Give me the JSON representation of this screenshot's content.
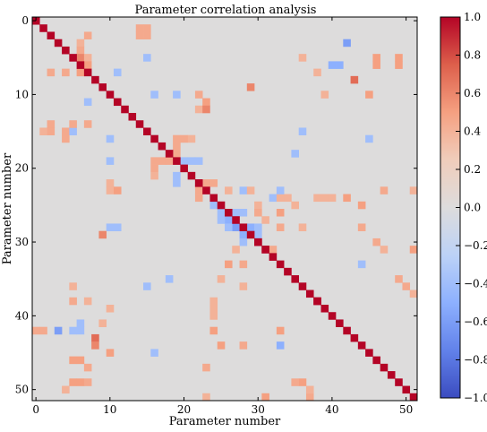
{
  "chart_data": {
    "type": "heatmap",
    "title": "Parameter correlation analysis",
    "xlabel": "Parameter number",
    "ylabel": "Parameter number",
    "n": 52,
    "x_ticks": [
      0,
      10,
      20,
      30,
      40,
      50
    ],
    "y_ticks": [
      0,
      10,
      20,
      30,
      40,
      50
    ],
    "colorbar": {
      "min": -1.0,
      "max": 1.0,
      "ticks": [
        1.0,
        0.8,
        0.6,
        0.4,
        0.2,
        0.0,
        -0.2,
        -0.4,
        -0.6,
        -0.8,
        -1.0
      ],
      "tick_labels": [
        "1.0",
        "0.8",
        "0.6",
        "0.4",
        "0.2",
        "0.0",
        "−0.2",
        "−0.4",
        "−0.6",
        "−0.8",
        "−1.0"
      ],
      "colormap": "coolwarm"
    },
    "diagonal_value": 1.0,
    "background_value": 0.0,
    "cells": [
      [
        1,
        15,
        0.4
      ],
      [
        2,
        7,
        0.45
      ],
      [
        4,
        7,
        0.45
      ],
      [
        4,
        15,
        0.45
      ],
      [
        4,
        16,
        0.45
      ],
      [
        5,
        15,
        -0.4
      ],
      [
        6,
        3,
        0.4
      ],
      [
        6,
        4,
        0.45
      ],
      [
        6,
        5,
        0.6
      ],
      [
        6,
        7,
        0.5
      ],
      [
        7,
        2,
        0.45
      ],
      [
        7,
        5,
        0.4
      ],
      [
        7,
        6,
        0.5
      ],
      [
        7,
        11,
        -0.4
      ],
      [
        10,
        16,
        -0.4
      ],
      [
        10,
        19,
        -0.4
      ],
      [
        10,
        22,
        0.4
      ],
      [
        10,
        23,
        0.4
      ],
      [
        10,
        28,
        -0.4
      ],
      [
        11,
        7,
        -0.4
      ],
      [
        11,
        23,
        0.5
      ],
      [
        11,
        28,
        -0.4
      ],
      [
        14,
        2,
        0.45
      ],
      [
        15,
        2,
        0.45
      ],
      [
        15,
        5,
        -0.4
      ],
      [
        16,
        10,
        -0.4
      ],
      [
        19,
        10,
        -0.4
      ],
      [
        22,
        10,
        0.45
      ],
      [
        23,
        11,
        0.5
      ],
      [
        16,
        19,
        0.45
      ],
      [
        16,
        20,
        0.45
      ],
      [
        19,
        16,
        0.45
      ],
      [
        19,
        17,
        0.45
      ],
      [
        19,
        18,
        0.45
      ],
      [
        21,
        16,
        0.4
      ],
      [
        17,
        19,
        0.45
      ],
      [
        18,
        19,
        0.45
      ],
      [
        19,
        21,
        -0.4
      ],
      [
        19,
        22,
        -0.4
      ],
      [
        20,
        16,
        0.45
      ],
      [
        20,
        19,
        -0.4
      ],
      [
        16,
        21,
        0.4
      ],
      [
        21,
        19,
        -0.4
      ],
      [
        22,
        19,
        -0.4
      ],
      [
        15,
        36,
        -0.4
      ],
      [
        18,
        35,
        -0.4
      ],
      [
        3,
        42,
        -0.6
      ],
      [
        6,
        41,
        -0.4
      ],
      [
        8,
        43,
        0.7
      ],
      [
        5,
        46,
        0.5
      ],
      [
        6,
        46,
        0.5
      ],
      [
        5,
        49,
        0.5
      ],
      [
        6,
        49,
        0.5
      ],
      [
        10,
        45,
        0.5
      ],
      [
        7,
        38,
        0.4
      ],
      [
        10,
        39,
        0.4
      ],
      [
        5,
        36,
        0.4
      ],
      [
        9,
        29,
        0.6
      ],
      [
        11,
        28,
        -0.4
      ],
      [
        16,
        45,
        -0.4
      ],
      [
        19,
        10,
        -0.4
      ],
      [
        22,
        10,
        0.4
      ],
      [
        23,
        11,
        0.4
      ],
      [
        22,
        22,
        1.0
      ],
      [
        22,
        23,
        0.45
      ],
      [
        23,
        22,
        0.45
      ],
      [
        24,
        22,
        0.45
      ],
      [
        22,
        24,
        0.45
      ],
      [
        23,
        47,
        0.45
      ],
      [
        23,
        51,
        0.4
      ],
      [
        24,
        38,
        0.4
      ],
      [
        24,
        39,
        0.4
      ],
      [
        24,
        40,
        0.4
      ],
      [
        25,
        44,
        0.5
      ],
      [
        24,
        42,
        0.5
      ],
      [
        22,
        12,
        0.4
      ],
      [
        23,
        12,
        0.6
      ],
      [
        28,
        23,
        -0.4
      ],
      [
        29,
        23,
        0.4
      ],
      [
        27,
        28,
        -0.6
      ],
      [
        28,
        29,
        -0.5
      ],
      [
        27,
        26,
        -0.4
      ],
      [
        28,
        26,
        -0.4
      ],
      [
        26,
        27,
        -0.5
      ],
      [
        26,
        28,
        -0.4
      ],
      [
        29,
        28,
        -0.5
      ],
      [
        30,
        29,
        -0.4
      ],
      [
        28,
        30,
        -0.4
      ],
      [
        30,
        28,
        -0.4
      ],
      [
        25,
        27,
        -0.4
      ],
      [
        25,
        26,
        -0.4
      ],
      [
        24,
        25,
        -0.4
      ],
      [
        32,
        24,
        -0.4
      ],
      [
        33,
        24,
        0.4
      ],
      [
        34,
        24,
        0.4
      ],
      [
        28,
        36,
        0.4
      ],
      [
        26,
        33,
        0.5
      ],
      [
        27,
        31,
        0.4
      ],
      [
        25,
        35,
        0.4
      ],
      [
        31,
        31,
        1.0
      ],
      [
        32,
        31,
        0.45
      ],
      [
        33,
        23,
        -0.4
      ],
      [
        26,
        23,
        0.4
      ],
      [
        30,
        25,
        0.4
      ],
      [
        30,
        26,
        0.45
      ],
      [
        23,
        47,
        0.45
      ],
      [
        24,
        38,
        0.4
      ],
      [
        24,
        39,
        0.4
      ],
      [
        23,
        51,
        0.45
      ],
      [
        28,
        44,
        0.45
      ],
      [
        28,
        33,
        0.45
      ],
      [
        29,
        9,
        0.6
      ],
      [
        31,
        51,
        0.5
      ],
      [
        30,
        28,
        -0.4
      ],
      [
        35,
        18,
        -0.4
      ],
      [
        36,
        5,
        0.4
      ],
      [
        36,
        15,
        -0.4
      ],
      [
        38,
        7,
        0.4
      ],
      [
        39,
        10,
        0.4
      ],
      [
        38,
        24,
        0.4
      ],
      [
        39,
        24,
        0.4
      ],
      [
        40,
        24,
        0.4
      ],
      [
        42,
        24,
        0.5
      ],
      [
        44,
        25,
        0.5
      ],
      [
        41,
        6,
        -0.5
      ],
      [
        43,
        8,
        0.7
      ],
      [
        45,
        10,
        0.5
      ],
      [
        45,
        16,
        -0.4
      ],
      [
        47,
        23,
        0.45
      ],
      [
        51,
        23,
        0.4
      ],
      [
        44,
        28,
        0.45
      ],
      [
        44,
        33,
        -0.4
      ],
      [
        46,
        5,
        0.5
      ],
      [
        49,
        5,
        0.5
      ],
      [
        49,
        6,
        0.5
      ],
      [
        46,
        6,
        0.5
      ],
      [
        42,
        3,
        -0.6
      ],
      [
        33,
        26,
        0.5
      ],
      [
        31,
        27,
        0.4
      ],
      [
        35,
        25,
        0.4
      ],
      [
        36,
        28,
        0.4
      ],
      [
        33,
        28,
        0.45
      ],
      [
        30,
        30,
        1.0
      ],
      [
        51,
        31,
        0.5
      ],
      [
        49,
        35,
        0.45
      ],
      [
        51,
        37,
        0.4
      ],
      [
        47,
        31,
        0.4
      ],
      [
        33,
        42,
        0.5
      ],
      [
        33,
        44,
        -0.5
      ],
      [
        36,
        49,
        0.5
      ],
      [
        37,
        51,
        0.45
      ],
      [
        35,
        49,
        0.45
      ],
      [
        37,
        50,
        0.4
      ],
      [
        1,
        42,
        0.45
      ],
      [
        0,
        42,
        0.45
      ],
      [
        38,
        7,
        0.4
      ],
      [
        46,
        30,
        0.45
      ],
      [
        4,
        50,
        0.4
      ],
      [
        5,
        49,
        0.45
      ],
      [
        6,
        49,
        0.5
      ],
      [
        43,
        8,
        0.7
      ],
      [
        50,
        36,
        0.45
      ],
      [
        51,
        37,
        0.45
      ],
      [
        5,
        38,
        0.45
      ],
      [
        16,
        45,
        -0.4
      ],
      [
        29,
        9,
        0.6
      ],
      [
        27,
        26,
        -0.5
      ],
      [
        5,
        14,
        0.45
      ],
      [
        2,
        14,
        0.45
      ],
      [
        2,
        15,
        0.45
      ],
      [
        15,
        1,
        0.45
      ],
      [
        14,
        1,
        0.45
      ],
      [
        7,
        14,
        0.45
      ],
      [
        5,
        42,
        -0.4
      ],
      [
        6,
        42,
        -0.4
      ],
      [
        38,
        38,
        1.0
      ],
      [
        40,
        6,
        -0.5
      ],
      [
        41,
        6,
        -0.5
      ],
      [
        5,
        38,
        0.4
      ],
      [
        7,
        47,
        0.45
      ],
      [
        7,
        49,
        0.45
      ],
      [
        8,
        44,
        0.6
      ],
      [
        9,
        41,
        0.4
      ]
    ]
  }
}
